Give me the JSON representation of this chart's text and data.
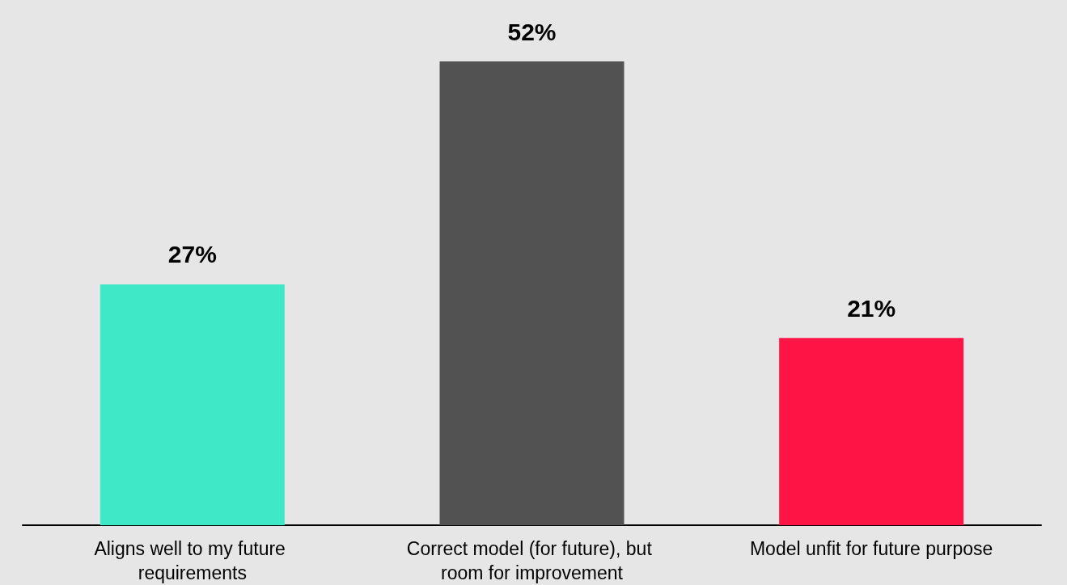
{
  "chart_data": {
    "type": "bar",
    "categories": [
      "Aligns well to my future requirements",
      "Correct model (for future), but room for improvement",
      "Model unfit for future purpose"
    ],
    "values": [
      27,
      52,
      21
    ],
    "colors": [
      "#3fe9c7",
      "#525252",
      "#ff1446"
    ],
    "value_labels": [
      "27%",
      "52%",
      "21%"
    ]
  }
}
